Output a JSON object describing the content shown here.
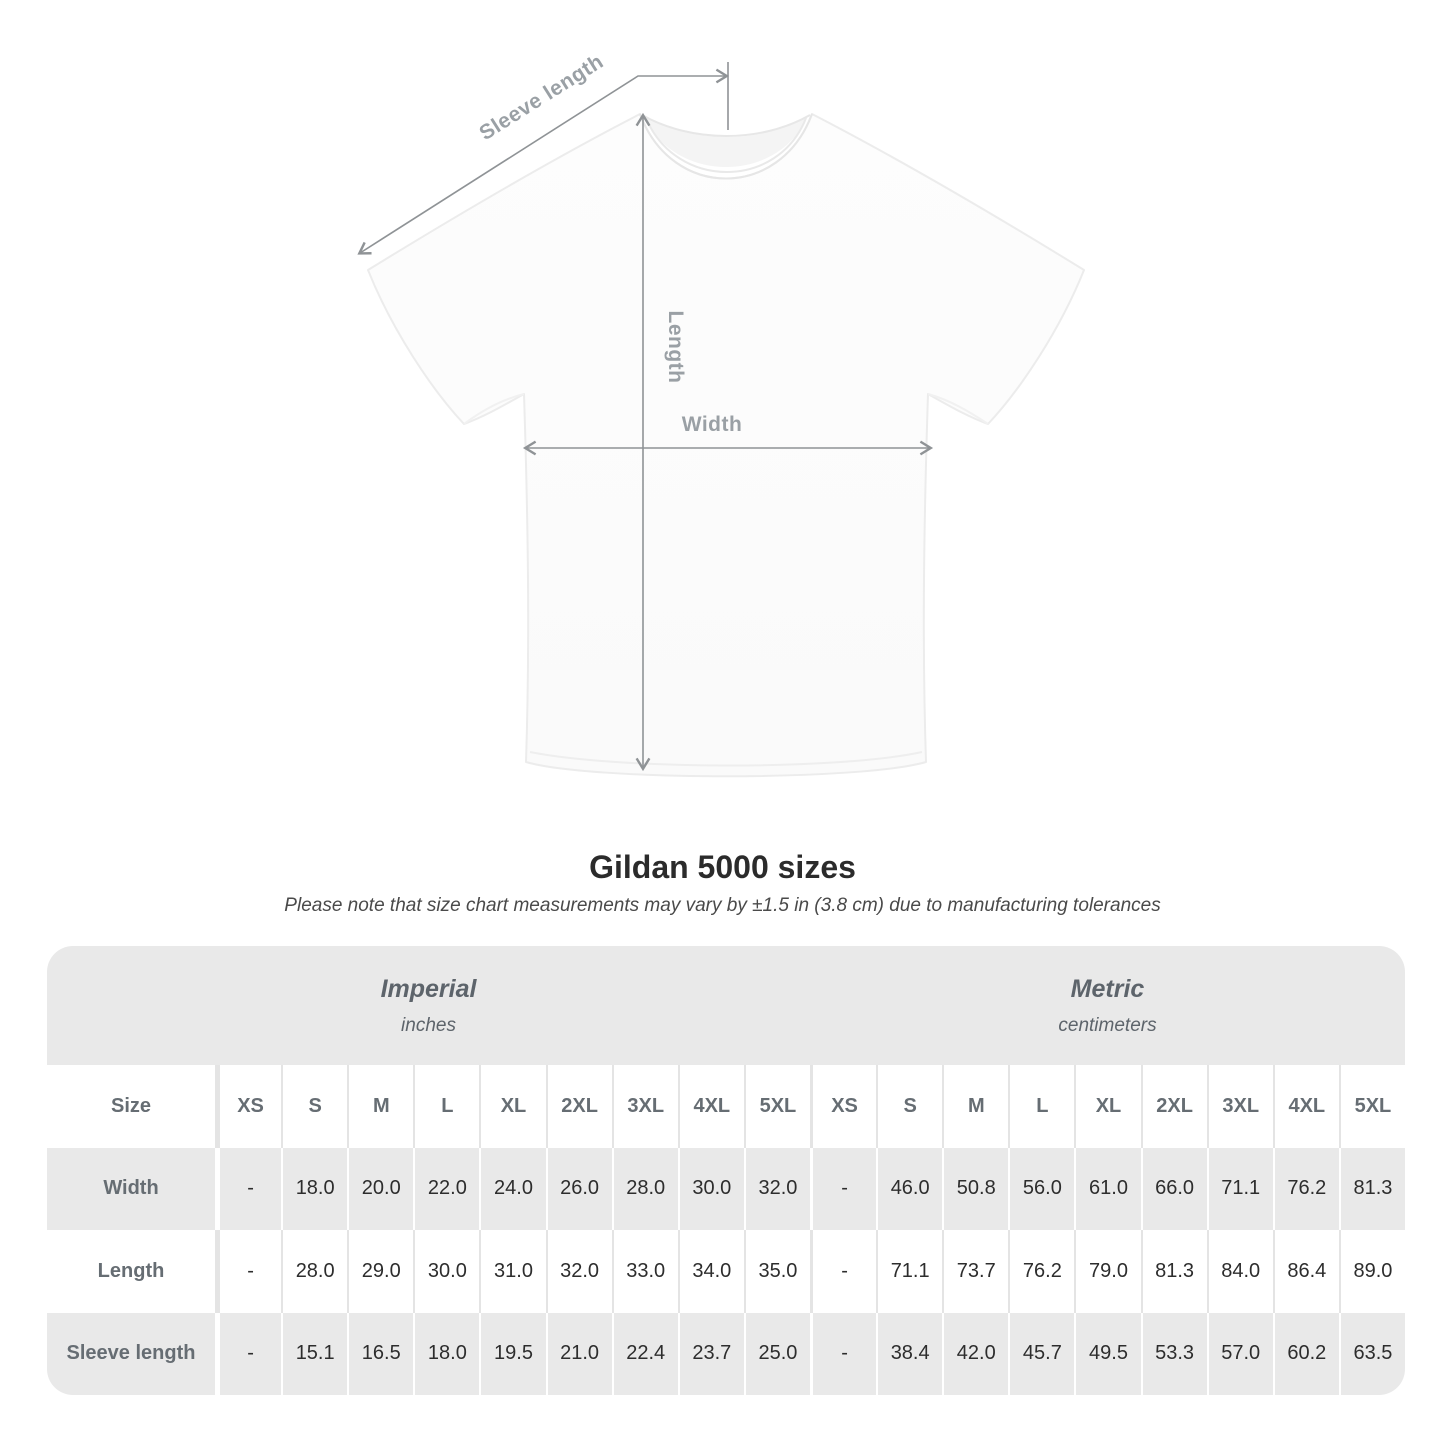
{
  "figure": {
    "sleeve_label": "Sleeve length",
    "length_label": "Length",
    "width_label": "Width",
    "arrow_color": "#8f9396",
    "label_color": "#9aa0a5"
  },
  "title": "Gildan 5000 sizes",
  "subtitle": "Please note that size chart measurements may vary by ±1.5 in (3.8 cm) due to manufacturing tolerances",
  "table": {
    "size_header": "Size",
    "groups": [
      {
        "label": "Imperial",
        "sublabel": "inches"
      },
      {
        "label": "Metric",
        "sublabel": "centimeters"
      }
    ],
    "sizes": [
      "XS",
      "S",
      "M",
      "L",
      "XL",
      "2XL",
      "3XL",
      "4XL",
      "5XL"
    ],
    "rows": [
      {
        "label": "Width",
        "imperial": [
          "-",
          "18.0",
          "20.0",
          "22.0",
          "24.0",
          "26.0",
          "28.0",
          "30.0",
          "32.0"
        ],
        "metric": [
          "-",
          "46.0",
          "50.8",
          "56.0",
          "61.0",
          "66.0",
          "71.1",
          "76.2",
          "81.3"
        ]
      },
      {
        "label": "Length",
        "imperial": [
          "-",
          "28.0",
          "29.0",
          "30.0",
          "31.0",
          "32.0",
          "33.0",
          "34.0",
          "35.0"
        ],
        "metric": [
          "-",
          "71.1",
          "73.7",
          "76.2",
          "79.0",
          "81.3",
          "84.0",
          "86.4",
          "89.0"
        ]
      },
      {
        "label": "Sleeve length",
        "imperial": [
          "-",
          "15.1",
          "16.5",
          "18.0",
          "19.5",
          "21.0",
          "22.4",
          "23.7",
          "25.0"
        ],
        "metric": [
          "-",
          "38.4",
          "42.0",
          "45.7",
          "49.5",
          "53.3",
          "57.0",
          "60.2",
          "63.5"
        ]
      }
    ],
    "stripe_color": "#e9e9e9"
  },
  "chart_data": {
    "type": "table",
    "title": "Gildan 5000 sizes",
    "note": "Please note that size chart measurements may vary by ±1.5 in (3.8 cm) due to manufacturing tolerances",
    "column_groups": [
      "Imperial (inches)",
      "Metric (centimeters)"
    ],
    "columns": [
      "Size",
      "XS",
      "S",
      "M",
      "L",
      "XL",
      "2XL",
      "3XL",
      "4XL",
      "5XL",
      "XS",
      "S",
      "M",
      "L",
      "XL",
      "2XL",
      "3XL",
      "4XL",
      "5XL"
    ],
    "rows": [
      [
        "Width",
        "-",
        18.0,
        20.0,
        22.0,
        24.0,
        26.0,
        28.0,
        30.0,
        32.0,
        "-",
        46.0,
        50.8,
        56.0,
        61.0,
        66.0,
        71.1,
        76.2,
        81.3
      ],
      [
        "Length",
        "-",
        28.0,
        29.0,
        30.0,
        31.0,
        32.0,
        33.0,
        34.0,
        35.0,
        "-",
        71.1,
        73.7,
        76.2,
        79.0,
        81.3,
        84.0,
        86.4,
        89.0
      ],
      [
        "Sleeve length",
        "-",
        15.1,
        16.5,
        18.0,
        19.5,
        21.0,
        22.4,
        23.7,
        25.0,
        "-",
        38.4,
        42.0,
        45.7,
        49.5,
        53.3,
        57.0,
        60.2,
        63.5
      ]
    ]
  }
}
